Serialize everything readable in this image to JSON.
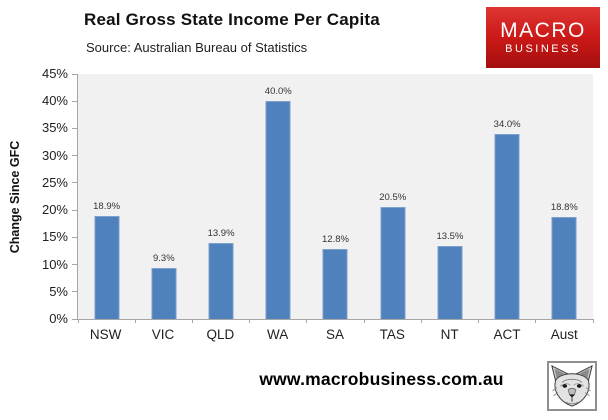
{
  "header": {
    "title": "Real Gross State Income Per Capita",
    "source": "Source: Australian Bureau of Statistics"
  },
  "logo": {
    "line1": "MACRO",
    "line2": "BUSINESS",
    "text_color": "#ffffff",
    "red_top": "#de3634",
    "red_mid": "#cb1917",
    "red_bottom": "#a30f0e"
  },
  "chart_data": {
    "type": "bar",
    "title": "Real Gross State Income Per Capita",
    "subtitle": "Source: Australian Bureau of Statistics",
    "categories": [
      "NSW",
      "VIC",
      "QLD",
      "WA",
      "SA",
      "TAS",
      "NT",
      "ACT",
      "Aust"
    ],
    "values": [
      18.9,
      9.3,
      13.9,
      40.0,
      12.8,
      20.5,
      13.5,
      34.0,
      18.8
    ],
    "value_labels": [
      "18.9%",
      "9.3%",
      "13.9%",
      "40.0%",
      "12.8%",
      "20.5%",
      "13.5%",
      "34.0%",
      "18.8%"
    ],
    "xlabel": "",
    "ylabel": "Change Since GFC",
    "ylim": [
      0,
      45
    ],
    "ytick_step": 5,
    "ytick_labels": [
      "0%",
      "5%",
      "10%",
      "15%",
      "20%",
      "25%",
      "30%",
      "35%",
      "40%",
      "45%"
    ],
    "grid": false,
    "legend": null,
    "bar_color": "#4f81bd",
    "plot_bg": "#f1f1f1"
  },
  "footer": {
    "website": "www.macrobusiness.com.au",
    "logo_icon": "wolf-sketch-icon"
  }
}
